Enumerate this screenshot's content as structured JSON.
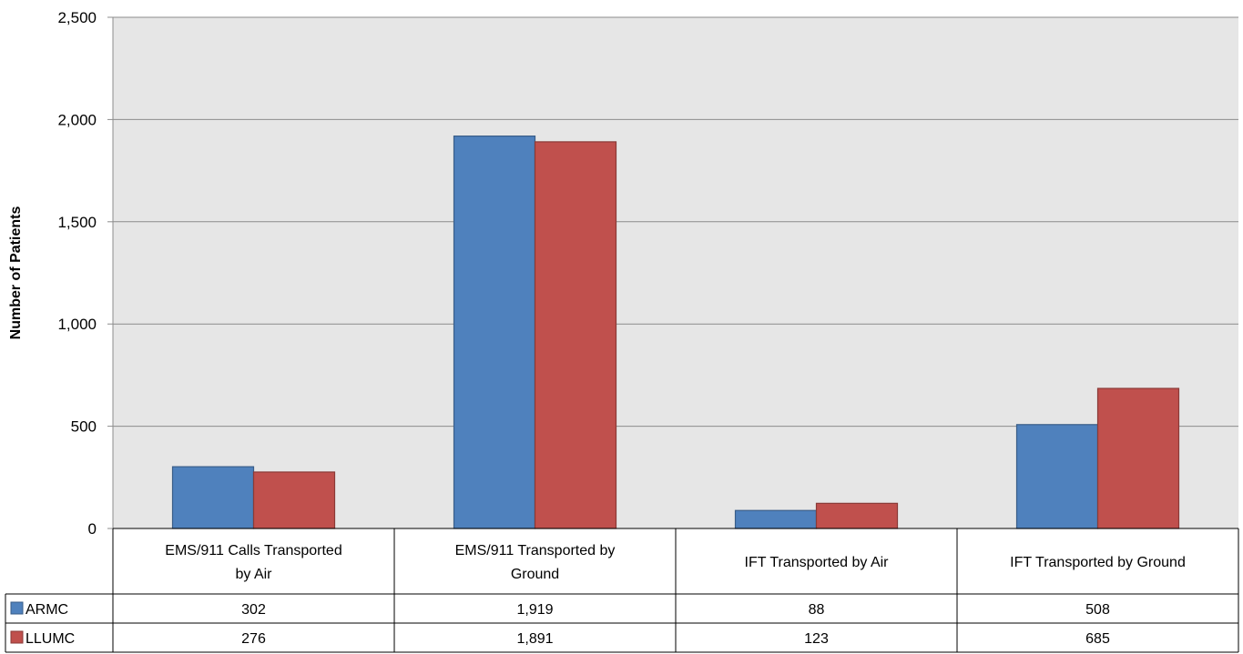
{
  "chart_data": {
    "type": "bar",
    "title": "",
    "xlabel": "",
    "ylabel": "Number of Patients",
    "ylim": [
      0,
      2500
    ],
    "yticks": [
      0,
      500,
      1000,
      1500,
      2000,
      2500
    ],
    "ytick_labels": [
      "0",
      "500",
      "1,000",
      "1,500",
      "2,000",
      "2,500"
    ],
    "grid": true,
    "legend": "data-table",
    "categories": [
      [
        "EMS/911 Calls Transported",
        "by Air"
      ],
      [
        "EMS/911 Transported by",
        "Ground"
      ],
      [
        "IFT Transported by Air"
      ],
      [
        "IFT Transported by Ground"
      ]
    ],
    "series": [
      {
        "name": "ARMC",
        "color": "#4f81bd",
        "values": [
          302,
          1919,
          88,
          508
        ],
        "labels": [
          "302",
          "1,919",
          "88",
          "508"
        ]
      },
      {
        "name": "LLUMC",
        "color": "#c0504d",
        "values": [
          276,
          1891,
          123,
          685
        ],
        "labels": [
          "276",
          "1,891",
          "123",
          "685"
        ]
      }
    ]
  }
}
